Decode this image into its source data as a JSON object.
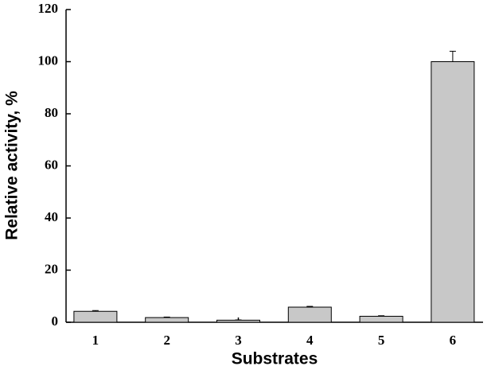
{
  "chart_data": {
    "type": "bar",
    "x_label": "Substrates",
    "y_label": "Relative activity, %",
    "categories": [
      "1",
      "2",
      "3",
      "4",
      "5",
      "6"
    ],
    "values": [
      4.2,
      1.8,
      0.8,
      5.8,
      2.3,
      100
    ],
    "errors": [
      0.3,
      0.2,
      0.1,
      0.3,
      0.2,
      4
    ],
    "color": "#c8c8c8",
    "ylim": [
      0,
      120
    ],
    "yticks": [
      0,
      20,
      40,
      60,
      80,
      100,
      120
    ],
    "grid": false
  }
}
